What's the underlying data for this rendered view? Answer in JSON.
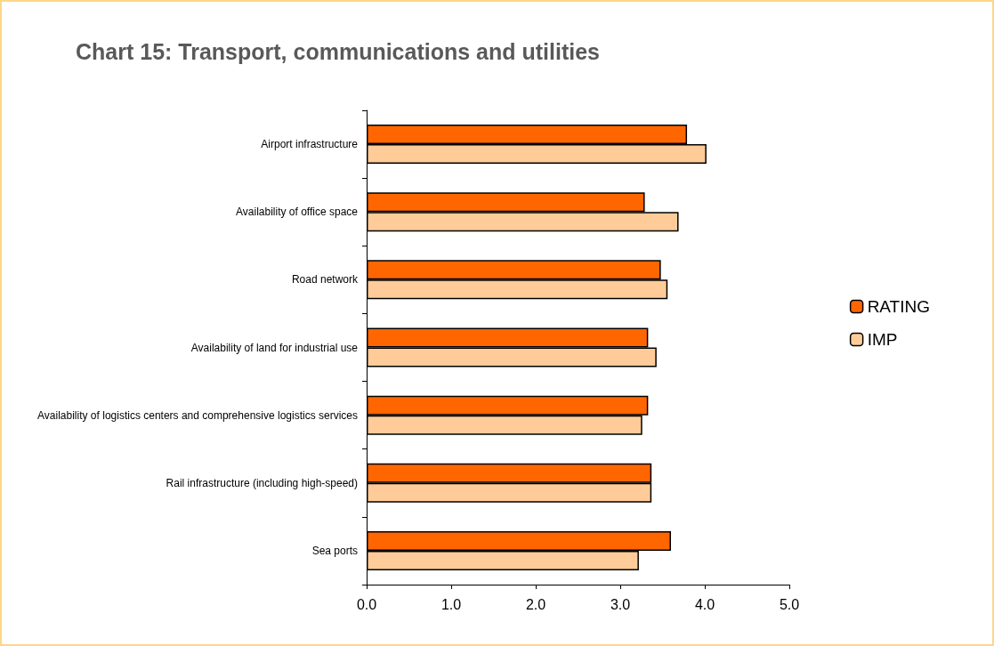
{
  "chart_data": {
    "type": "bar",
    "orientation": "horizontal",
    "title": "Chart 15: Transport, communications and utilities",
    "categories": [
      "Airport infrastructure",
      "Availability of office space",
      "Road network",
      "Availability of land for industrial use",
      "Availability of logistics centers and comprehensive logistics services",
      "Rail infrastructure (including high-speed)",
      "Sea ports"
    ],
    "series": [
      {
        "name": "RATING",
        "color": "#ff6600",
        "values": [
          3.79,
          3.29,
          3.48,
          3.33,
          3.33,
          3.37,
          3.6
        ]
      },
      {
        "name": "IMP",
        "color": "#ffcc99",
        "values": [
          4.02,
          3.69,
          3.56,
          3.43,
          3.26,
          3.37,
          3.22
        ]
      }
    ],
    "xlim": [
      0,
      5
    ],
    "xticks": [
      {
        "value": 0,
        "label": "0.0"
      },
      {
        "value": 1,
        "label": "1.0"
      },
      {
        "value": 2,
        "label": "2.0"
      },
      {
        "value": 3,
        "label": "3.0"
      },
      {
        "value": 4,
        "label": "4.0"
      },
      {
        "value": 5,
        "label": "5.0"
      }
    ],
    "grid": false,
    "legend": "right"
  }
}
